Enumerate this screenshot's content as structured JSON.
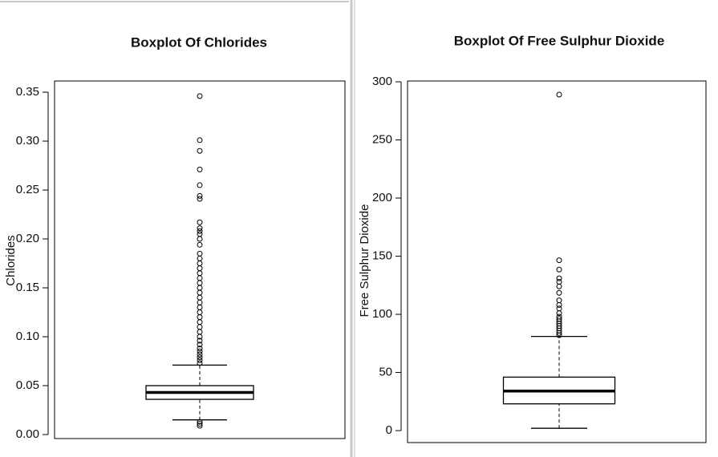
{
  "chart_data": [
    {
      "type": "box",
      "title": "Boxplot Of Chlorides",
      "y_label": "Chlorides",
      "ylim": [
        -0.0041,
        0.3615
      ],
      "yticks": [
        {
          "value": 0,
          "label": "0.00"
        },
        0.05,
        {
          "value": 0.1,
          "label": "0.10"
        },
        0.15,
        {
          "value": 0.2,
          "label": "0.20"
        },
        0.25,
        {
          "value": 0.3,
          "label": "0.30"
        },
        0.35
      ],
      "whisker_low": 0.015,
      "q1": 0.036,
      "median": 0.043,
      "q3": 0.05,
      "whisker_high": 0.071,
      "outliers": [
        0.346,
        0.301,
        0.29,
        0.271,
        0.255,
        0.244,
        0.241,
        0.217,
        0.211,
        0.208,
        0.205,
        0.2,
        0.194,
        0.185,
        0.18,
        0.175,
        0.17,
        0.165,
        0.16,
        0.155,
        0.15,
        0.145,
        0.14,
        0.135,
        0.13,
        0.125,
        0.12,
        0.115,
        0.11,
        0.105,
        0.1,
        0.096,
        0.092,
        0.088,
        0.085,
        0.082,
        0.079,
        0.076,
        0.073,
        0.013,
        0.011,
        0.009
      ]
    },
    {
      "type": "box",
      "title": "Boxplot Of Free Sulphur Dioxide",
      "y_label": "Free Sulphur Dioxide",
      "ylim": [
        -10.3,
        300.7
      ],
      "yticks": [
        0,
        50,
        100,
        150,
        200,
        250,
        300
      ],
      "whisker_low": 2,
      "q1": 23,
      "median": 34,
      "q3": 46,
      "whisker_high": 81,
      "outliers": [
        289,
        146.5,
        138.5,
        131,
        128,
        124,
        118.5,
        112,
        108,
        105,
        101,
        98,
        96,
        94,
        92,
        90,
        88,
        86,
        84,
        82
      ]
    }
  ]
}
